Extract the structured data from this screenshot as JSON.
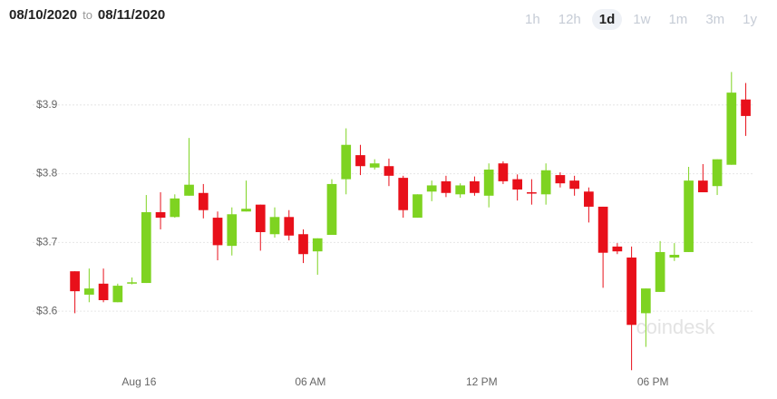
{
  "header": {
    "from": "08/10/2020",
    "separator": "to",
    "to": "08/11/2020",
    "ranges": [
      "1h",
      "12h",
      "1d",
      "1w",
      "1m",
      "3m",
      "1y"
    ],
    "selected_range": 2
  },
  "chart_data": {
    "type": "candlestick",
    "watermark": "coindesk",
    "x": [
      0,
      0.5,
      1,
      1.5,
      2,
      2.5,
      3,
      3.5,
      4,
      4.5,
      5,
      5.5,
      6,
      6.5,
      7,
      7.5,
      8,
      8.5,
      9,
      9.5,
      10,
      10.5,
      11,
      11.5,
      12,
      12.5,
      13,
      13.5,
      14,
      14.5,
      15,
      15.5,
      16,
      16.5,
      17,
      17.5,
      18,
      18.5,
      19,
      19.5,
      20,
      20.5,
      21,
      21.5,
      22,
      22.5,
      23,
      23.5
    ],
    "open": [
      3.658,
      3.624,
      3.64,
      3.613,
      3.641,
      3.641,
      3.744,
      3.737,
      3.768,
      3.772,
      3.736,
      3.695,
      3.745,
      3.755,
      3.712,
      3.737,
      3.712,
      3.687,
      3.711,
      3.792,
      3.827,
      3.809,
      3.811,
      3.794,
      3.736,
      3.774,
      3.789,
      3.77,
      3.789,
      3.768,
      3.815,
      3.792,
      3.773,
      3.77,
      3.798,
      3.79,
      3.774,
      3.752,
      3.694,
      3.678,
      3.597,
      3.628,
      3.678,
      3.686,
      3.79,
      3.782,
      3.813,
      3.908
    ],
    "high": [
      3.658,
      3.662,
      3.662,
      3.64,
      3.649,
      3.769,
      3.773,
      3.77,
      3.852,
      3.785,
      3.745,
      3.751,
      3.79,
      3.755,
      3.751,
      3.747,
      3.719,
      3.706,
      3.792,
      3.866,
      3.842,
      3.821,
      3.822,
      3.797,
      3.77,
      3.79,
      3.797,
      3.786,
      3.796,
      3.815,
      3.818,
      3.799,
      3.792,
      3.815,
      3.802,
      3.797,
      3.78,
      3.752,
      3.699,
      3.694,
      3.633,
      3.702,
      3.699,
      3.81,
      3.814,
      3.821,
      3.948,
      3.932
    ],
    "low": [
      3.597,
      3.613,
      3.613,
      3.613,
      3.639,
      3.641,
      3.719,
      3.736,
      3.768,
      3.735,
      3.674,
      3.681,
      3.745,
      3.688,
      3.707,
      3.703,
      3.67,
      3.653,
      3.711,
      3.77,
      3.798,
      3.806,
      3.782,
      3.736,
      3.736,
      3.76,
      3.766,
      3.765,
      3.768,
      3.751,
      3.785,
      3.761,
      3.755,
      3.755,
      3.78,
      3.768,
      3.729,
      3.634,
      3.683,
      3.514,
      3.548,
      3.628,
      3.673,
      3.686,
      3.773,
      3.769,
      3.813,
      3.855
    ],
    "close": [
      3.629,
      3.633,
      3.616,
      3.637,
      3.642,
      3.744,
      3.736,
      3.764,
      3.784,
      3.747,
      3.696,
      3.741,
      3.749,
      3.715,
      3.737,
      3.71,
      3.683,
      3.706,
      3.785,
      3.842,
      3.811,
      3.815,
      3.797,
      3.747,
      3.77,
      3.783,
      3.772,
      3.783,
      3.772,
      3.806,
      3.789,
      3.777,
      3.772,
      3.805,
      3.786,
      3.778,
      3.752,
      3.685,
      3.687,
      3.58,
      3.633,
      3.686,
      3.682,
      3.79,
      3.773,
      3.821,
      3.918,
      3.884
    ],
    "up_color": "#7ed321",
    "down_color": "#e8101a",
    "xlim": [
      -0.4,
      23.8
    ],
    "xticks": [
      {
        "value": 2.25,
        "label": "Aug 16"
      },
      {
        "value": 8.25,
        "label": "06 AM"
      },
      {
        "value": 14.25,
        "label": "12 PM"
      },
      {
        "value": 20.25,
        "label": "06 PM"
      }
    ],
    "ylim": [
      3.488,
      4.0
    ],
    "yticks": [
      {
        "value": 3.6,
        "label": "$3.6"
      },
      {
        "value": 3.7,
        "label": "$3.7"
      },
      {
        "value": 3.8,
        "label": "$3.8"
      },
      {
        "value": 3.9,
        "label": "$3.9"
      }
    ],
    "grid": true
  }
}
